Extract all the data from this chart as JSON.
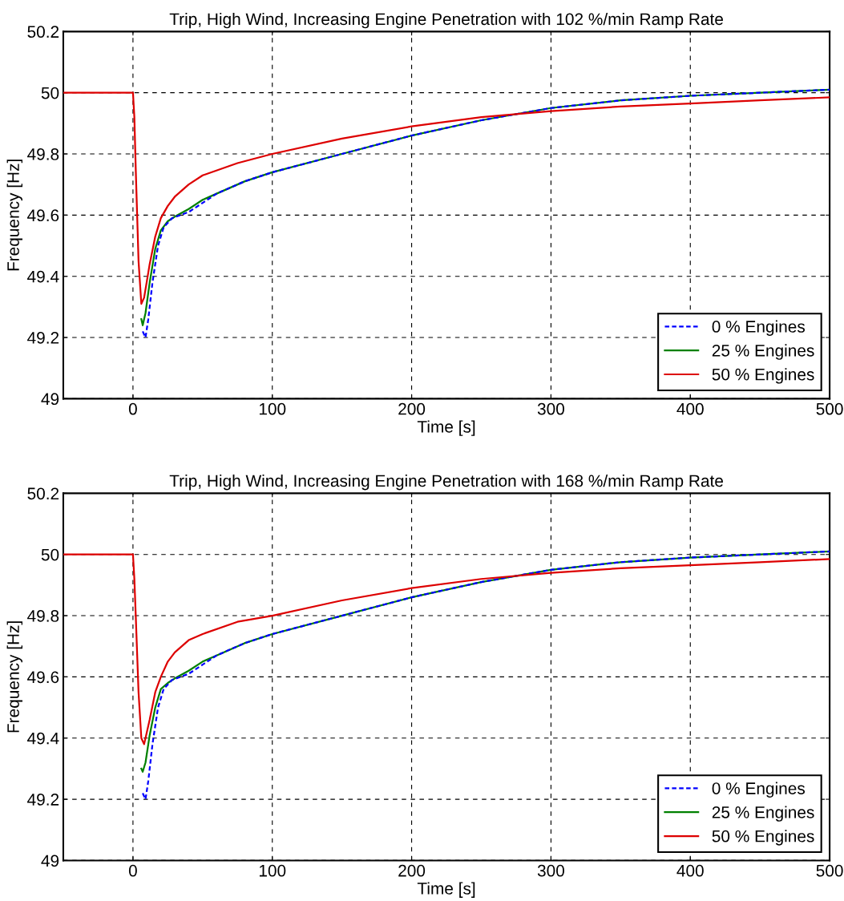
{
  "chart_data": [
    {
      "type": "line",
      "title": "Trip, High Wind, Increasing Engine Penetration with 102 %/min Ramp Rate",
      "xlabel": "Time [s]",
      "ylabel": "Frequency [Hz]",
      "xlim": [
        -50,
        500
      ],
      "xticks": [
        0,
        100,
        200,
        300,
        400,
        500
      ],
      "ylim": [
        49,
        50.2
      ],
      "yticks": [
        49,
        49.2,
        49.4,
        49.6,
        49.8,
        50,
        50.2
      ],
      "grid": true,
      "legend": "bottom right",
      "series": [
        {
          "name": "0 % Engines",
          "color": "#0000ff",
          "line_style": "dashed",
          "x": [
            7,
            9,
            11,
            14,
            18,
            22,
            28,
            40,
            50,
            60,
            80,
            100,
            150,
            200,
            250,
            300,
            350,
            400,
            450,
            500
          ],
          "values": [
            49.22,
            49.2,
            49.26,
            49.38,
            49.5,
            49.56,
            49.59,
            49.61,
            49.64,
            49.67,
            49.71,
            49.74,
            49.8,
            49.86,
            49.91,
            49.95,
            49.975,
            49.99,
            50,
            50.01
          ]
        },
        {
          "name": "25 % Engines",
          "color": "#008000",
          "line_style": "solid",
          "x": [
            6,
            7,
            9,
            12,
            16,
            20,
            25,
            30,
            40,
            50,
            60,
            80,
            100,
            150,
            200,
            250,
            300,
            350,
            400,
            450,
            500
          ],
          "values": [
            49.26,
            49.24,
            49.28,
            49.38,
            49.49,
            49.55,
            49.58,
            49.595,
            49.62,
            49.65,
            49.67,
            49.71,
            49.74,
            49.8,
            49.86,
            49.91,
            49.95,
            49.975,
            49.99,
            50,
            50.01
          ]
        },
        {
          "name": "50 % Engines",
          "color": "#dd0000",
          "line_style": "solid",
          "x": [
            -50,
            0,
            1,
            2,
            4,
            6,
            8,
            12,
            16,
            20,
            25,
            30,
            40,
            50,
            75,
            100,
            150,
            200,
            250,
            300,
            350,
            400,
            450,
            500
          ],
          "values": [
            50,
            50,
            49.92,
            49.75,
            49.45,
            49.31,
            49.33,
            49.44,
            49.53,
            49.59,
            49.63,
            49.66,
            49.7,
            49.73,
            49.77,
            49.8,
            49.85,
            49.89,
            49.92,
            49.94,
            49.955,
            49.965,
            49.975,
            49.985
          ]
        }
      ]
    },
    {
      "type": "line",
      "title": "Trip, High Wind, Increasing Engine Penetration with 168 %/min Ramp Rate",
      "xlabel": "Time [s]",
      "ylabel": "Frequency [Hz]",
      "xlim": [
        -50,
        500
      ],
      "xticks": [
        0,
        100,
        200,
        300,
        400,
        500
      ],
      "ylim": [
        49,
        50.2
      ],
      "yticks": [
        49,
        49.2,
        49.4,
        49.6,
        49.8,
        50,
        50.2
      ],
      "grid": true,
      "legend": "bottom right",
      "series": [
        {
          "name": "0 % Engines",
          "color": "#0000ff",
          "line_style": "dashed",
          "x": [
            7,
            9,
            11,
            14,
            18,
            22,
            28,
            40,
            50,
            60,
            80,
            100,
            150,
            200,
            250,
            300,
            350,
            400,
            450,
            500
          ],
          "values": [
            49.22,
            49.2,
            49.26,
            49.38,
            49.5,
            49.56,
            49.59,
            49.61,
            49.64,
            49.67,
            49.71,
            49.74,
            49.8,
            49.86,
            49.91,
            49.95,
            49.975,
            49.99,
            50,
            50.01
          ]
        },
        {
          "name": "25 % Engines",
          "color": "#008000",
          "line_style": "solid",
          "x": [
            6,
            7,
            9,
            12,
            16,
            20,
            25,
            30,
            40,
            50,
            60,
            80,
            100,
            150,
            200,
            250,
            300,
            350,
            400,
            450,
            500
          ],
          "values": [
            49.3,
            49.29,
            49.32,
            49.41,
            49.5,
            49.56,
            49.58,
            49.595,
            49.62,
            49.65,
            49.67,
            49.71,
            49.74,
            49.8,
            49.86,
            49.91,
            49.95,
            49.975,
            49.99,
            50,
            50.01
          ]
        },
        {
          "name": "50 % Engines",
          "color": "#dd0000",
          "line_style": "solid",
          "x": [
            -50,
            0,
            1,
            2,
            4,
            6,
            8,
            12,
            16,
            20,
            25,
            30,
            40,
            50,
            75,
            100,
            150,
            200,
            250,
            300,
            350,
            400,
            450,
            500
          ],
          "values": [
            50,
            50,
            49.92,
            49.8,
            49.55,
            49.4,
            49.38,
            49.46,
            49.55,
            49.6,
            49.65,
            49.68,
            49.72,
            49.74,
            49.78,
            49.8,
            49.85,
            49.89,
            49.92,
            49.94,
            49.955,
            49.965,
            49.975,
            49.985
          ]
        }
      ]
    }
  ]
}
